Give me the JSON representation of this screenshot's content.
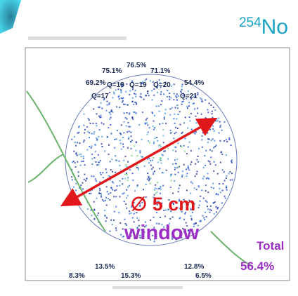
{
  "title": {
    "mass": "254",
    "element": "No"
  },
  "upper_labels": [
    {
      "text": "75.1%"
    },
    {
      "text": "76.5%"
    },
    {
      "text": "71.1%"
    },
    {
      "text": "69.2%"
    },
    {
      "text": "54.4%"
    },
    {
      "text": "Q=18"
    },
    {
      "text": "Q=19"
    },
    {
      "text": "Q=20"
    },
    {
      "text": "Q=17"
    },
    {
      "text": "Q=21"
    }
  ],
  "window": {
    "size": "∅ 5 cm",
    "label": "window"
  },
  "lower_labels": [
    {
      "text": "13.5%"
    },
    {
      "text": "12.8%"
    },
    {
      "text": "8.3%"
    },
    {
      "text": "15.3%"
    },
    {
      "text": "6.5%"
    }
  ],
  "total": {
    "label": "Total",
    "value": "56.4%"
  }
}
